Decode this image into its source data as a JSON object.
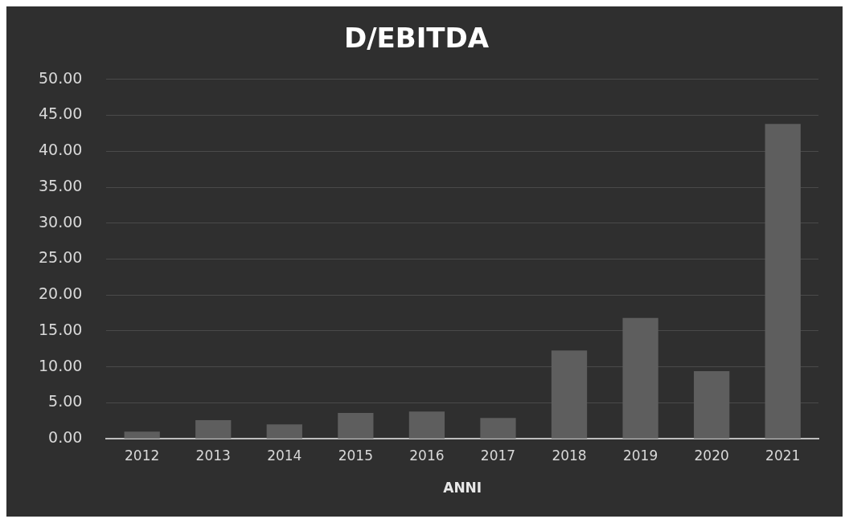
{
  "chart_data": {
    "type": "bar",
    "title": "D/EBITDA",
    "xlabel": "ANNI",
    "categories": [
      "2012",
      "2013",
      "2014",
      "2015",
      "2016",
      "2017",
      "2018",
      "2019",
      "2020",
      "2021"
    ],
    "values": [
      1.0,
      2.6,
      2.0,
      3.6,
      3.8,
      2.9,
      12.3,
      16.8,
      9.4,
      43.8
    ],
    "color": "#5e5e5e",
    "ylim": [
      0,
      50
    ],
    "yticks": [
      {
        "value": 0,
        "label": "0.00"
      },
      {
        "value": 5,
        "label": "5.00"
      },
      {
        "value": 10,
        "label": "10.00"
      },
      {
        "value": 15,
        "label": "15.00"
      },
      {
        "value": 20,
        "label": "20.00"
      },
      {
        "value": 25,
        "label": "25.00"
      },
      {
        "value": 30,
        "label": "30.00"
      },
      {
        "value": 35,
        "label": "35.00"
      },
      {
        "value": 40,
        "label": "40.00"
      },
      {
        "value": 45,
        "label": "45.00"
      },
      {
        "value": 50,
        "label": "50.00"
      }
    ],
    "grid": "y",
    "legend": false
  }
}
